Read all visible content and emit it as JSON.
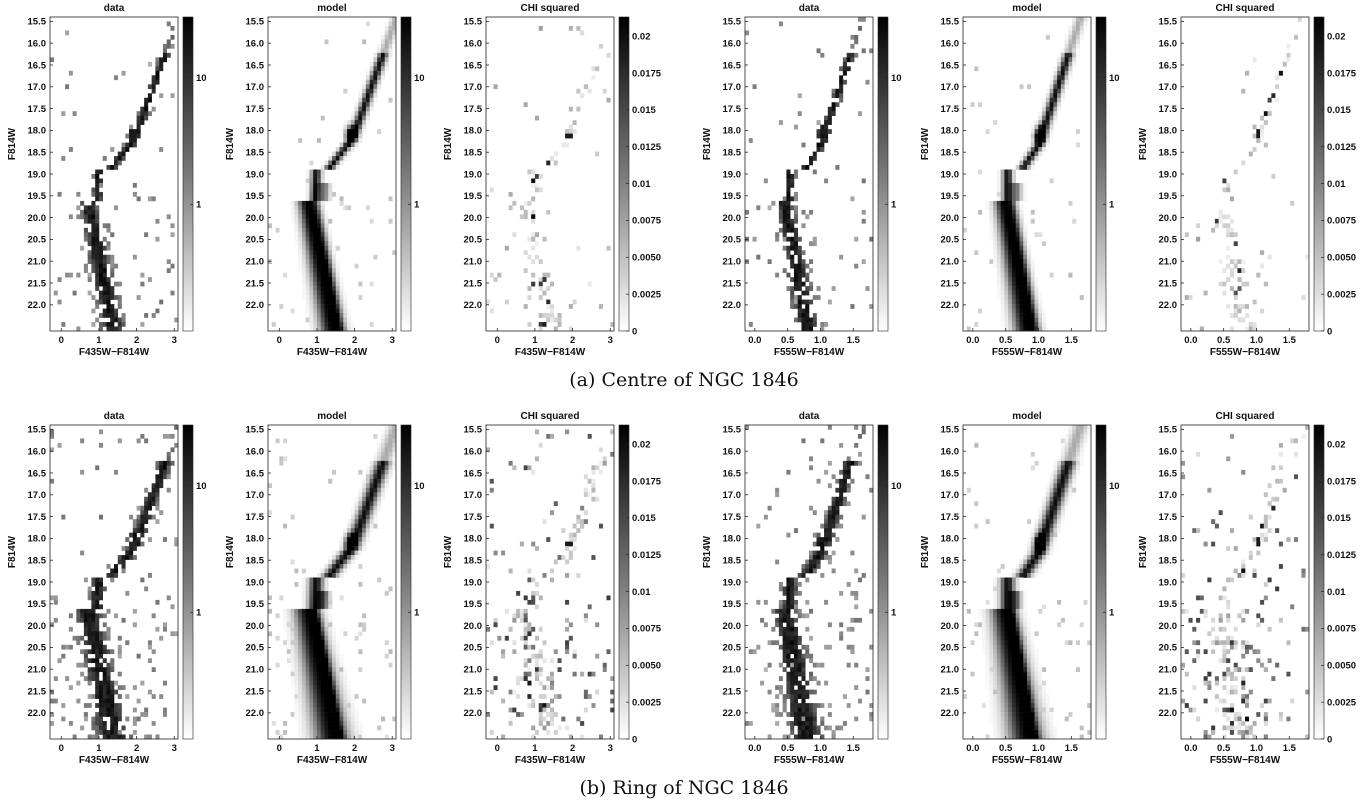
{
  "captions": [
    "(a) Centre of NGC 1846",
    "(b) Ring of NGC 1846"
  ],
  "chart_data": {
    "type": "heatmap",
    "rows": [
      {
        "caption": "(a) Centre of NGC 1846",
        "panels": [
          {
            "title": "data",
            "kind": "data",
            "band": "435",
            "xlabel": "F435W−F814W",
            "ylabel": "F814W",
            "xlim": [
              -0.3,
              3.1
            ],
            "ylim": [
              15.4,
              22.6
            ],
            "xticks": [
              "0",
              "1",
              "2",
              "3"
            ],
            "xtick_values": [
              0,
              1,
              2,
              3
            ],
            "yticks": [
              "15.5",
              "16.0",
              "16.5",
              "17.0",
              "17.5",
              "18.0",
              "18.5",
              "19.0",
              "19.5",
              "20.0",
              "20.5",
              "21.0",
              "21.5",
              "22.0"
            ],
            "ytick_values": [
              15.5,
              16,
              16.5,
              17,
              17.5,
              18,
              18.5,
              19,
              19.5,
              20,
              20.5,
              21,
              21.5,
              22
            ],
            "colorbar_scale": "log",
            "colorbar_ticks": [
              "10",
              "1"
            ],
            "colorbar_tick_values": [
              10,
              1
            ],
            "colorbar_range": [
              0.1,
              30
            ]
          },
          {
            "title": "model",
            "kind": "model",
            "band": "435",
            "xlabel": "F435W−F814W",
            "ylabel": "F814W",
            "xlim": [
              -0.3,
              3.1
            ],
            "ylim": [
              15.4,
              22.6
            ],
            "xticks": [
              "0",
              "1",
              "2",
              "3"
            ],
            "xtick_values": [
              0,
              1,
              2,
              3
            ],
            "yticks": [
              "15.5",
              "16.0",
              "16.5",
              "17.0",
              "17.5",
              "18.0",
              "18.5",
              "19.0",
              "19.5",
              "20.0",
              "20.5",
              "21.0",
              "21.5",
              "22.0"
            ],
            "ytick_values": [
              15.5,
              16,
              16.5,
              17,
              17.5,
              18,
              18.5,
              19,
              19.5,
              20,
              20.5,
              21,
              21.5,
              22
            ],
            "colorbar_scale": "log",
            "colorbar_ticks": [
              "10",
              "1"
            ],
            "colorbar_tick_values": [
              10,
              1
            ],
            "colorbar_range": [
              0.1,
              30
            ]
          },
          {
            "title": "CHI squared",
            "kind": "chi",
            "band": "435",
            "xlabel": "F435W−F814W",
            "ylabel": "F814W",
            "xlim": [
              -0.3,
              3.1
            ],
            "ylim": [
              15.4,
              22.6
            ],
            "xticks": [
              "0",
              "1",
              "2",
              "3"
            ],
            "xtick_values": [
              0,
              1,
              2,
              3
            ],
            "yticks": [
              "15.5",
              "16.0",
              "16.5",
              "17.0",
              "17.5",
              "18.0",
              "18.5",
              "19.0",
              "19.5",
              "20.0",
              "20.5",
              "21.0",
              "21.5",
              "22.0"
            ],
            "ytick_values": [
              15.5,
              16,
              16.5,
              17,
              17.5,
              18,
              18.5,
              19,
              19.5,
              20,
              20.5,
              21,
              21.5,
              22
            ],
            "colorbar_scale": "linear",
            "colorbar_ticks": [
              "0.02",
              "0.0175",
              "0.015",
              "0.0125",
              "0.01",
              "0.0075",
              "0.0050",
              "0.0025",
              "0"
            ],
            "colorbar_tick_values": [
              0.02,
              0.0175,
              0.015,
              0.0125,
              0.01,
              0.0075,
              0.005,
              0.0025,
              0
            ],
            "colorbar_range": [
              0,
              0.0213
            ]
          },
          {
            "title": "data",
            "kind": "data",
            "band": "555",
            "xlabel": "F555W−F814W",
            "ylabel": "F814W",
            "xlim": [
              -0.15,
              1.8
            ],
            "ylim": [
              15.4,
              22.6
            ],
            "xticks": [
              "0.0",
              "0.5",
              "1.0",
              "1.5"
            ],
            "xtick_values": [
              0,
              0.5,
              1,
              1.5
            ],
            "yticks": [
              "15.5",
              "16.0",
              "16.5",
              "17.0",
              "17.5",
              "18.0",
              "18.5",
              "19.0",
              "19.5",
              "20.0",
              "20.5",
              "21.0",
              "21.5",
              "22.0"
            ],
            "ytick_values": [
              15.5,
              16,
              16.5,
              17,
              17.5,
              18,
              18.5,
              19,
              19.5,
              20,
              20.5,
              21,
              21.5,
              22
            ],
            "colorbar_scale": "log",
            "colorbar_ticks": [
              "10",
              "1"
            ],
            "colorbar_tick_values": [
              10,
              1
            ],
            "colorbar_range": [
              0.1,
              30
            ]
          },
          {
            "title": "model",
            "kind": "model",
            "band": "555",
            "xlabel": "F555W−F814W",
            "ylabel": "F814W",
            "xlim": [
              -0.15,
              1.8
            ],
            "ylim": [
              15.4,
              22.6
            ],
            "xticks": [
              "0.0",
              "0.5",
              "1.0",
              "1.5"
            ],
            "xtick_values": [
              0,
              0.5,
              1,
              1.5
            ],
            "yticks": [
              "15.5",
              "16.0",
              "16.5",
              "17.0",
              "17.5",
              "18.0",
              "18.5",
              "19.0",
              "19.5",
              "20.0",
              "20.5",
              "21.0",
              "21.5",
              "22.0"
            ],
            "ytick_values": [
              15.5,
              16,
              16.5,
              17,
              17.5,
              18,
              18.5,
              19,
              19.5,
              20,
              20.5,
              21,
              21.5,
              22
            ],
            "colorbar_scale": "log",
            "colorbar_ticks": [
              "10",
              "1"
            ],
            "colorbar_tick_values": [
              10,
              1
            ],
            "colorbar_range": [
              0.1,
              30
            ]
          },
          {
            "title": "CHI squared",
            "kind": "chi",
            "band": "555",
            "xlabel": "F555W−F814W",
            "ylabel": "F814W",
            "xlim": [
              -0.15,
              1.8
            ],
            "ylim": [
              15.4,
              22.6
            ],
            "xticks": [
              "0.0",
              "0.5",
              "1.0",
              "1.5"
            ],
            "xtick_values": [
              0,
              0.5,
              1,
              1.5
            ],
            "yticks": [
              "15.5",
              "16.0",
              "16.5",
              "17.0",
              "17.5",
              "18.0",
              "18.5",
              "19.0",
              "19.5",
              "20.0",
              "20.5",
              "21.0",
              "21.5",
              "22.0"
            ],
            "ytick_values": [
              15.5,
              16,
              16.5,
              17,
              17.5,
              18,
              18.5,
              19,
              19.5,
              20,
              20.5,
              21,
              21.5,
              22
            ],
            "colorbar_scale": "linear",
            "colorbar_ticks": [
              "0.02",
              "0.0175",
              "0.015",
              "0.0125",
              "0.01",
              "0.0075",
              "0.0050",
              "0.0025",
              "0"
            ],
            "colorbar_tick_values": [
              0.02,
              0.0175,
              0.015,
              0.0125,
              0.01,
              0.0075,
              0.005,
              0.0025,
              0
            ],
            "colorbar_range": [
              0,
              0.0213
            ]
          }
        ]
      },
      {
        "caption": "(b) Ring of NGC 1846",
        "panels": [
          {
            "title": "data",
            "kind": "data",
            "band": "435",
            "xlabel": "F435W−F814W",
            "ylabel": "F814W",
            "xlim": [
              -0.3,
              3.1
            ],
            "ylim": [
              15.4,
              22.6
            ],
            "xticks": [
              "0",
              "1",
              "2",
              "3"
            ],
            "xtick_values": [
              0,
              1,
              2,
              3
            ],
            "yticks": [
              "15.5",
              "16.0",
              "16.5",
              "17.0",
              "17.5",
              "18.0",
              "18.5",
              "19.0",
              "19.5",
              "20.0",
              "20.5",
              "21.0",
              "21.5",
              "22.0"
            ],
            "ytick_values": [
              15.5,
              16,
              16.5,
              17,
              17.5,
              18,
              18.5,
              19,
              19.5,
              20,
              20.5,
              21,
              21.5,
              22
            ],
            "colorbar_scale": "log",
            "colorbar_ticks": [
              "10",
              "1"
            ],
            "colorbar_tick_values": [
              10,
              1
            ],
            "colorbar_range": [
              0.1,
              30
            ]
          },
          {
            "title": "model",
            "kind": "model",
            "band": "435",
            "xlabel": "F435W−F814W",
            "ylabel": "F814W",
            "xlim": [
              -0.3,
              3.1
            ],
            "ylim": [
              15.4,
              22.6
            ],
            "xticks": [
              "0",
              "1",
              "2",
              "3"
            ],
            "xtick_values": [
              0,
              1,
              2,
              3
            ],
            "yticks": [
              "15.5",
              "16.0",
              "16.5",
              "17.0",
              "17.5",
              "18.0",
              "18.5",
              "19.0",
              "19.5",
              "20.0",
              "20.5",
              "21.0",
              "21.5",
              "22.0"
            ],
            "ytick_values": [
              15.5,
              16,
              16.5,
              17,
              17.5,
              18,
              18.5,
              19,
              19.5,
              20,
              20.5,
              21,
              21.5,
              22
            ],
            "colorbar_scale": "log",
            "colorbar_ticks": [
              "10",
              "1"
            ],
            "colorbar_tick_values": [
              10,
              1
            ],
            "colorbar_range": [
              0.1,
              30
            ]
          },
          {
            "title": "CHI squared",
            "kind": "chi",
            "band": "435",
            "xlabel": "F435W−F814W",
            "ylabel": "F814W",
            "xlim": [
              -0.3,
              3.1
            ],
            "ylim": [
              15.4,
              22.6
            ],
            "xticks": [
              "0",
              "1",
              "2",
              "3"
            ],
            "xtick_values": [
              0,
              1,
              2,
              3
            ],
            "yticks": [
              "15.5",
              "16.0",
              "16.5",
              "17.0",
              "17.5",
              "18.0",
              "18.5",
              "19.0",
              "19.5",
              "20.0",
              "20.5",
              "21.0",
              "21.5",
              "22.0"
            ],
            "ytick_values": [
              15.5,
              16,
              16.5,
              17,
              17.5,
              18,
              18.5,
              19,
              19.5,
              20,
              20.5,
              21,
              21.5,
              22
            ],
            "colorbar_scale": "linear",
            "colorbar_ticks": [
              "0.02",
              "0.0175",
              "0.015",
              "0.0125",
              "0.01",
              "0.0075",
              "0.0050",
              "0.0025",
              "0"
            ],
            "colorbar_tick_values": [
              0.02,
              0.0175,
              0.015,
              0.0125,
              0.01,
              0.0075,
              0.005,
              0.0025,
              0
            ],
            "colorbar_range": [
              0,
              0.0213
            ]
          },
          {
            "title": "data",
            "kind": "data",
            "band": "555",
            "xlabel": "F555W−F814W",
            "ylabel": "F814W",
            "xlim": [
              -0.15,
              1.8
            ],
            "ylim": [
              15.4,
              22.6
            ],
            "xticks": [
              "0.0",
              "0.5",
              "1.0",
              "1.5"
            ],
            "xtick_values": [
              0,
              0.5,
              1,
              1.5
            ],
            "yticks": [
              "15.5",
              "16.0",
              "16.5",
              "17.0",
              "17.5",
              "18.0",
              "18.5",
              "19.0",
              "19.5",
              "20.0",
              "20.5",
              "21.0",
              "21.5",
              "22.0"
            ],
            "ytick_values": [
              15.5,
              16,
              16.5,
              17,
              17.5,
              18,
              18.5,
              19,
              19.5,
              20,
              20.5,
              21,
              21.5,
              22
            ],
            "colorbar_scale": "log",
            "colorbar_ticks": [
              "10",
              "1"
            ],
            "colorbar_tick_values": [
              10,
              1
            ],
            "colorbar_range": [
              0.1,
              30
            ]
          },
          {
            "title": "model",
            "kind": "model",
            "band": "555",
            "xlabel": "F555W−F814W",
            "ylabel": "F814W",
            "xlim": [
              -0.15,
              1.8
            ],
            "ylim": [
              15.4,
              22.6
            ],
            "xticks": [
              "0.0",
              "0.5",
              "1.0",
              "1.5"
            ],
            "xtick_values": [
              0,
              0.5,
              1,
              1.5
            ],
            "yticks": [
              "15.5",
              "16.0",
              "16.5",
              "17.0",
              "17.5",
              "18.0",
              "18.5",
              "19.0",
              "19.5",
              "20.0",
              "20.5",
              "21.0",
              "21.5",
              "22.0"
            ],
            "ytick_values": [
              15.5,
              16,
              16.5,
              17,
              17.5,
              18,
              18.5,
              19,
              19.5,
              20,
              20.5,
              21,
              21.5,
              22
            ],
            "colorbar_scale": "log",
            "colorbar_ticks": [
              "10",
              "1"
            ],
            "colorbar_tick_values": [
              10,
              1
            ],
            "colorbar_range": [
              0.1,
              30
            ]
          },
          {
            "title": "CHI squared",
            "kind": "chi",
            "band": "555",
            "xlabel": "F555W−F814W",
            "ylabel": "F814W",
            "xlim": [
              -0.15,
              1.8
            ],
            "ylim": [
              15.4,
              22.6
            ],
            "xticks": [
              "0.0",
              "0.5",
              "1.0",
              "1.5"
            ],
            "xtick_values": [
              0,
              0.5,
              1,
              1.5
            ],
            "yticks": [
              "15.5",
              "16.0",
              "16.5",
              "17.0",
              "17.5",
              "18.0",
              "18.5",
              "19.0",
              "19.5",
              "20.0",
              "20.5",
              "21.0",
              "21.5",
              "22.0"
            ],
            "ytick_values": [
              15.5,
              16,
              16.5,
              17,
              17.5,
              18,
              18.5,
              19,
              19.5,
              20,
              20.5,
              21,
              21.5,
              22
            ],
            "colorbar_scale": "linear",
            "colorbar_ticks": [
              "0.02",
              "0.0175",
              "0.015",
              "0.0125",
              "0.01",
              "0.0075",
              "0.0050",
              "0.0025",
              "0"
            ],
            "colorbar_tick_values": [
              0.02,
              0.0175,
              0.015,
              0.0125,
              0.01,
              0.0075,
              0.005,
              0.0025,
              0
            ],
            "colorbar_range": [
              0,
              0.0213
            ]
          }
        ]
      }
    ]
  }
}
